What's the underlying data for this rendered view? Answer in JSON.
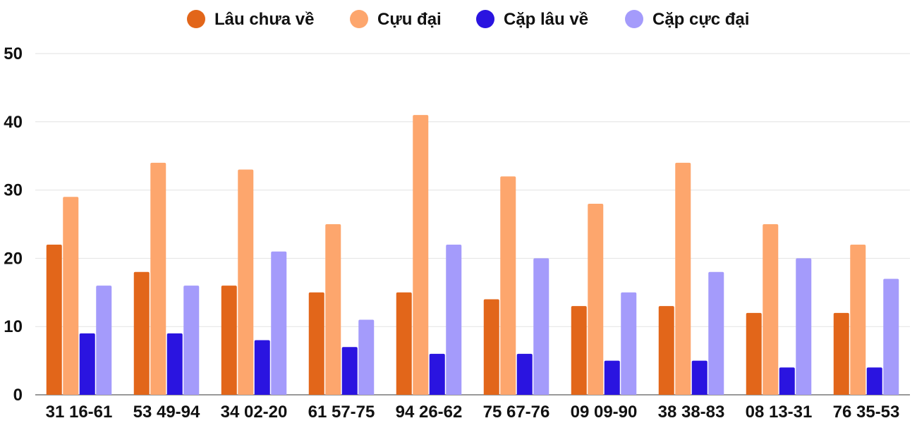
{
  "chart_data": {
    "type": "bar",
    "title": "",
    "xlabel": "",
    "ylabel": "",
    "ylim": [
      0,
      50
    ],
    "yticks": [
      0,
      10,
      20,
      30,
      40,
      50
    ],
    "grid": true,
    "legend_position": "top-center",
    "categories": [
      "31 16-61",
      "53 49-94",
      "34 02-20",
      "61 57-75",
      "94 26-62",
      "75 67-76",
      "09 09-90",
      "38 38-83",
      "08 13-31",
      "76 35-53"
    ],
    "series": [
      {
        "name": "Lâu chưa về",
        "color": "#e2661a",
        "values": [
          22,
          18,
          16,
          15,
          15,
          14,
          13,
          13,
          12,
          12
        ]
      },
      {
        "name": "Cựu đại",
        "color": "#fda66d",
        "values": [
          29,
          34,
          33,
          25,
          41,
          32,
          28,
          34,
          25,
          22
        ]
      },
      {
        "name": "Cặp lâu về",
        "color": "#2a14e0",
        "values": [
          9,
          9,
          8,
          7,
          6,
          6,
          5,
          5,
          4,
          4
        ]
      },
      {
        "name": "Cặp cực đại",
        "color": "#a49bfb",
        "values": [
          16,
          16,
          21,
          11,
          22,
          20,
          15,
          18,
          20,
          17
        ]
      }
    ]
  }
}
